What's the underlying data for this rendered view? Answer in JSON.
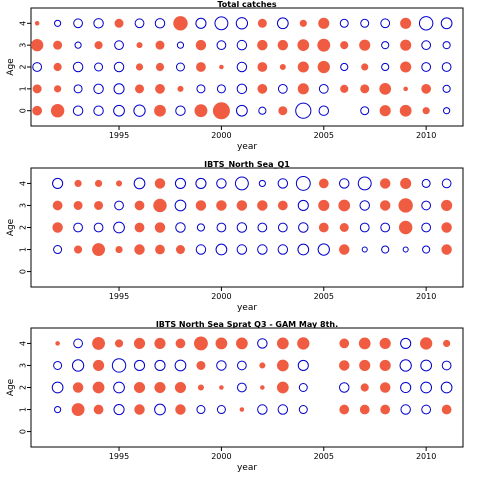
{
  "chart_data": [
    {
      "type": "scatter",
      "title": "Total catches",
      "xlabel": "year",
      "ylabel": "Age",
      "xlim": [
        1990.7,
        2011.8
      ],
      "ylim": [
        -0.7,
        4.7
      ],
      "xticks": [
        1995,
        2000,
        2005,
        2010
      ],
      "yticks": [
        0,
        1,
        2,
        3,
        4
      ],
      "marker_colors": {
        "positive": "#f05c42",
        "negative": "#0000cc"
      },
      "points": [
        [
          1991,
          0,
          0.3
        ],
        [
          1992,
          0,
          0.6
        ],
        [
          1993,
          0,
          -0.35
        ],
        [
          1994,
          0,
          -0.35
        ],
        [
          1995,
          0,
          -0.45
        ],
        [
          1996,
          0,
          -0.5
        ],
        [
          1997,
          0,
          0.45
        ],
        [
          1998,
          0,
          -0.35
        ],
        [
          1999,
          0,
          0.55
        ],
        [
          2000,
          0,
          1.0
        ],
        [
          2001,
          0,
          -0.45
        ],
        [
          2002,
          0,
          -0.2
        ],
        [
          2003,
          0,
          0.25
        ],
        [
          2004,
          0,
          -0.9
        ],
        [
          2005,
          0,
          -0.35
        ],
        [
          2007,
          0,
          -0.25
        ],
        [
          2008,
          0,
          0.4
        ],
        [
          2009,
          0,
          0.45
        ],
        [
          2010,
          0,
          0.15
        ],
        [
          2011,
          0,
          -0.15
        ],
        [
          1991,
          1,
          0.25
        ],
        [
          1992,
          1,
          0.15
        ],
        [
          1993,
          1,
          -0.25
        ],
        [
          1994,
          1,
          -0.35
        ],
        [
          1995,
          1,
          -0.4
        ],
        [
          1996,
          1,
          0.25
        ],
        [
          1997,
          1,
          0.3
        ],
        [
          1998,
          1,
          0.1
        ],
        [
          1999,
          1,
          -0.25
        ],
        [
          2000,
          1,
          -0.25
        ],
        [
          2001,
          1,
          -0.35
        ],
        [
          2002,
          1,
          0.3
        ],
        [
          2003,
          1,
          -0.3
        ],
        [
          2004,
          1,
          0.4
        ],
        [
          2005,
          1,
          -0.3
        ],
        [
          2006,
          1,
          0.2
        ],
        [
          2007,
          1,
          0.25
        ],
        [
          2008,
          1,
          0.45
        ],
        [
          2009,
          1,
          0.05
        ],
        [
          2010,
          1,
          0.3
        ],
        [
          2011,
          1,
          -0.2
        ],
        [
          1991,
          2,
          -0.3
        ],
        [
          1992,
          2,
          0.2
        ],
        [
          1993,
          2,
          -0.35
        ],
        [
          1994,
          2,
          -0.25
        ],
        [
          1995,
          2,
          -0.35
        ],
        [
          1996,
          2,
          0.15
        ],
        [
          1997,
          2,
          0.2
        ],
        [
          1998,
          2,
          -0.25
        ],
        [
          1999,
          2,
          0.3
        ],
        [
          2000,
          2,
          0.05
        ],
        [
          2001,
          2,
          -0.35
        ],
        [
          2002,
          2,
          0.3
        ],
        [
          2003,
          2,
          0.1
        ],
        [
          2004,
          2,
          0.4
        ],
        [
          2005,
          2,
          0.5
        ],
        [
          2006,
          2,
          -0.2
        ],
        [
          2007,
          2,
          0.15
        ],
        [
          2008,
          2,
          -0.2
        ],
        [
          2009,
          2,
          0.4
        ],
        [
          2010,
          2,
          -0.3
        ],
        [
          2011,
          2,
          -0.3
        ],
        [
          1991,
          3,
          0.5
        ],
        [
          1992,
          3,
          0.25
        ],
        [
          1993,
          3,
          -0.15
        ],
        [
          1994,
          3,
          0.2
        ],
        [
          1995,
          3,
          -0.3
        ],
        [
          1996,
          3,
          0.1
        ],
        [
          1997,
          3,
          0.25
        ],
        [
          1998,
          3,
          -0.15
        ],
        [
          1999,
          3,
          0.35
        ],
        [
          2000,
          3,
          -0.3
        ],
        [
          2001,
          3,
          -0.35
        ],
        [
          2002,
          3,
          0.35
        ],
        [
          2003,
          3,
          0.35
        ],
        [
          2004,
          3,
          0.45
        ],
        [
          2005,
          3,
          0.55
        ],
        [
          2006,
          3,
          0.2
        ],
        [
          2007,
          3,
          0.4
        ],
        [
          2008,
          3,
          -0.2
        ],
        [
          2009,
          3,
          0.4
        ],
        [
          2010,
          3,
          -0.3
        ],
        [
          2011,
          3,
          -0.2
        ],
        [
          1991,
          4,
          0.05
        ],
        [
          1992,
          4,
          -0.15
        ],
        [
          1993,
          4,
          -0.3
        ],
        [
          1994,
          4,
          -0.35
        ],
        [
          1995,
          4,
          0.25
        ],
        [
          1996,
          4,
          -0.3
        ],
        [
          1997,
          4,
          -0.35
        ],
        [
          1998,
          4,
          0.7
        ],
        [
          1999,
          4,
          -0.4
        ],
        [
          2000,
          4,
          -0.65
        ],
        [
          2001,
          4,
          -0.5
        ],
        [
          2002,
          4,
          0.25
        ],
        [
          2003,
          4,
          -0.45
        ],
        [
          2004,
          4,
          0.15
        ],
        [
          2005,
          4,
          0.4
        ],
        [
          2006,
          4,
          -0.25
        ],
        [
          2007,
          4,
          -0.25
        ],
        [
          2008,
          4,
          -0.3
        ],
        [
          2009,
          4,
          0.4
        ],
        [
          2010,
          4,
          -0.7
        ],
        [
          2011,
          4,
          -0.45
        ]
      ]
    },
    {
      "type": "scatter",
      "title": "IBTS_North Sea_Q1",
      "xlabel": "year",
      "ylabel": "Age",
      "xlim": [
        1990.7,
        2011.8
      ],
      "ylim": [
        -0.7,
        4.7
      ],
      "xticks": [
        1995,
        2000,
        2005,
        2010
      ],
      "yticks": [
        0,
        1,
        2,
        3,
        4
      ],
      "marker_colors": {
        "positive": "#f05c42",
        "negative": "#0000cc"
      },
      "points": [
        [
          1992,
          1,
          -0.25
        ],
        [
          1993,
          1,
          0.2
        ],
        [
          1994,
          1,
          0.55
        ],
        [
          1995,
          1,
          0.15
        ],
        [
          1996,
          1,
          0.35
        ],
        [
          1997,
          1,
          0.3
        ],
        [
          1998,
          1,
          0.25
        ],
        [
          1999,
          1,
          -0.35
        ],
        [
          2000,
          1,
          -0.45
        ],
        [
          2001,
          1,
          -0.35
        ],
        [
          2002,
          1,
          -0.35
        ],
        [
          2003,
          1,
          -0.35
        ],
        [
          2004,
          1,
          -0.45
        ],
        [
          2005,
          1,
          -0.5
        ],
        [
          2006,
          1,
          0.35
        ],
        [
          2007,
          1,
          -0.1
        ],
        [
          2008,
          1,
          -0.2
        ],
        [
          2009,
          1,
          -0.1
        ],
        [
          2010,
          1,
          -0.2
        ],
        [
          2011,
          1,
          0.35
        ],
        [
          1992,
          2,
          0.35
        ],
        [
          1993,
          2,
          -0.3
        ],
        [
          1994,
          2,
          -0.3
        ],
        [
          1995,
          2,
          -0.45
        ],
        [
          1996,
          2,
          0.3
        ],
        [
          1997,
          2,
          0.35
        ],
        [
          1998,
          2,
          -0.35
        ],
        [
          1999,
          2,
          -0.2
        ],
        [
          2000,
          2,
          -0.3
        ],
        [
          2001,
          2,
          -0.35
        ],
        [
          2002,
          2,
          -0.3
        ],
        [
          2003,
          2,
          -0.3
        ],
        [
          2004,
          2,
          -0.35
        ],
        [
          2005,
          2,
          0.3
        ],
        [
          2006,
          2,
          0.25
        ],
        [
          2007,
          2,
          -0.3
        ],
        [
          2008,
          2,
          -0.3
        ],
        [
          2009,
          2,
          0.6
        ],
        [
          2010,
          2,
          -0.3
        ],
        [
          2011,
          2,
          0.35
        ],
        [
          1992,
          3,
          0.3
        ],
        [
          1993,
          3,
          0.25
        ],
        [
          1994,
          3,
          0.25
        ],
        [
          1995,
          3,
          -0.3
        ],
        [
          1996,
          3,
          0.3
        ],
        [
          1997,
          3,
          0.6
        ],
        [
          1998,
          3,
          -0.45
        ],
        [
          1999,
          3,
          0.35
        ],
        [
          2000,
          3,
          0.35
        ],
        [
          2001,
          3,
          0.35
        ],
        [
          2002,
          3,
          0.35
        ],
        [
          2003,
          3,
          0.3
        ],
        [
          2004,
          3,
          -0.4
        ],
        [
          2005,
          3,
          0.4
        ],
        [
          2006,
          3,
          0.45
        ],
        [
          2007,
          3,
          -0.35
        ],
        [
          2008,
          3,
          0.35
        ],
        [
          2009,
          3,
          0.7
        ],
        [
          2010,
          3,
          -0.3
        ],
        [
          2011,
          3,
          0.4
        ],
        [
          1992,
          4,
          -0.4
        ],
        [
          1993,
          4,
          0.15
        ],
        [
          1994,
          4,
          0.15
        ],
        [
          1995,
          4,
          0.1
        ],
        [
          1996,
          4,
          -0.45
        ],
        [
          1997,
          4,
          0.35
        ],
        [
          1998,
          4,
          -0.4
        ],
        [
          1999,
          4,
          -0.4
        ],
        [
          2000,
          4,
          -0.35
        ],
        [
          2001,
          4,
          -0.65
        ],
        [
          2002,
          4,
          -0.15
        ],
        [
          2003,
          4,
          -0.35
        ],
        [
          2004,
          4,
          -0.75
        ],
        [
          2005,
          4,
          0.3
        ],
        [
          2006,
          4,
          -0.35
        ],
        [
          2007,
          4,
          -0.65
        ],
        [
          2008,
          4,
          0.35
        ],
        [
          2009,
          4,
          0.4
        ],
        [
          2010,
          4,
          -0.25
        ],
        [
          2011,
          4,
          -0.3
        ]
      ]
    },
    {
      "type": "scatter",
      "title": "IBTS North Sea Sprat Q3 - GAM May 8th.",
      "xlabel": "year",
      "ylabel": "Age",
      "xlim": [
        1990.7,
        2011.8
      ],
      "ylim": [
        -0.7,
        4.7
      ],
      "xticks": [
        1995,
        2000,
        2005,
        2010
      ],
      "yticks": [
        0,
        1,
        2,
        3,
        4
      ],
      "marker_colors": {
        "positive": "#f05c42",
        "negative": "#0000cc"
      },
      "points": [
        [
          1992,
          1,
          -0.15
        ],
        [
          1993,
          1,
          0.55
        ],
        [
          1994,
          1,
          0.3
        ],
        [
          1995,
          1,
          -0.4
        ],
        [
          1996,
          1,
          0.35
        ],
        [
          1997,
          1,
          -0.45
        ],
        [
          1998,
          1,
          0.35
        ],
        [
          1999,
          1,
          -0.25
        ],
        [
          2000,
          1,
          -0.25
        ],
        [
          2001,
          1,
          0.05
        ],
        [
          2002,
          1,
          -0.35
        ],
        [
          2003,
          1,
          -0.35
        ],
        [
          2004,
          1,
          -0.25
        ],
        [
          2006,
          1,
          0.3
        ],
        [
          2007,
          1,
          0.3
        ],
        [
          2008,
          1,
          0.3
        ],
        [
          2009,
          1,
          -0.35
        ],
        [
          2010,
          1,
          -0.3
        ],
        [
          2011,
          1,
          0.3
        ],
        [
          1992,
          2,
          -0.45
        ],
        [
          1993,
          2,
          0.35
        ],
        [
          1994,
          2,
          0.45
        ],
        [
          1995,
          2,
          -0.45
        ],
        [
          1996,
          2,
          0.4
        ],
        [
          1997,
          2,
          0.4
        ],
        [
          1998,
          2,
          0.4
        ],
        [
          1999,
          2,
          0.1
        ],
        [
          2000,
          2,
          0.05
        ],
        [
          2001,
          2,
          -0.3
        ],
        [
          2002,
          2,
          0.05
        ],
        [
          2003,
          2,
          0.45
        ],
        [
          2004,
          2,
          -0.25
        ],
        [
          2006,
          2,
          -0.35
        ],
        [
          2007,
          2,
          0.2
        ],
        [
          2008,
          2,
          0.35
        ],
        [
          2009,
          2,
          -0.4
        ],
        [
          2010,
          2,
          -0.45
        ],
        [
          2011,
          2,
          -0.45
        ],
        [
          1992,
          3,
          -0.25
        ],
        [
          1993,
          3,
          -0.5
        ],
        [
          1994,
          3,
          0.4
        ],
        [
          1995,
          3,
          -0.7
        ],
        [
          1996,
          3,
          -0.4
        ],
        [
          1997,
          3,
          -0.4
        ],
        [
          1998,
          3,
          -0.45
        ],
        [
          1999,
          3,
          0.25
        ],
        [
          2000,
          3,
          -0.35
        ],
        [
          2001,
          3,
          -0.3
        ],
        [
          2002,
          3,
          0.1
        ],
        [
          2003,
          3,
          0.45
        ],
        [
          2004,
          3,
          -0.4
        ],
        [
          2006,
          3,
          0.35
        ],
        [
          2007,
          3,
          0.4
        ],
        [
          2008,
          3,
          0.4
        ],
        [
          2009,
          3,
          -0.5
        ],
        [
          2010,
          3,
          -0.45
        ],
        [
          2011,
          3,
          -0.3
        ],
        [
          1992,
          4,
          0.05
        ],
        [
          1993,
          4,
          -0.3
        ],
        [
          1994,
          4,
          0.55
        ],
        [
          1995,
          4,
          0.2
        ],
        [
          1996,
          4,
          0.4
        ],
        [
          1997,
          4,
          0.4
        ],
        [
          1998,
          4,
          0.3
        ],
        [
          1999,
          4,
          0.65
        ],
        [
          2000,
          4,
          0.45
        ],
        [
          2001,
          4,
          0.45
        ],
        [
          2002,
          4,
          -0.35
        ],
        [
          2003,
          4,
          0.45
        ],
        [
          2004,
          4,
          0.5
        ],
        [
          2006,
          4,
          0.3
        ],
        [
          2007,
          4,
          0.45
        ],
        [
          2008,
          4,
          0.4
        ],
        [
          2009,
          4,
          -0.4
        ],
        [
          2010,
          4,
          0.5
        ],
        [
          2011,
          4,
          0.15
        ]
      ]
    }
  ]
}
